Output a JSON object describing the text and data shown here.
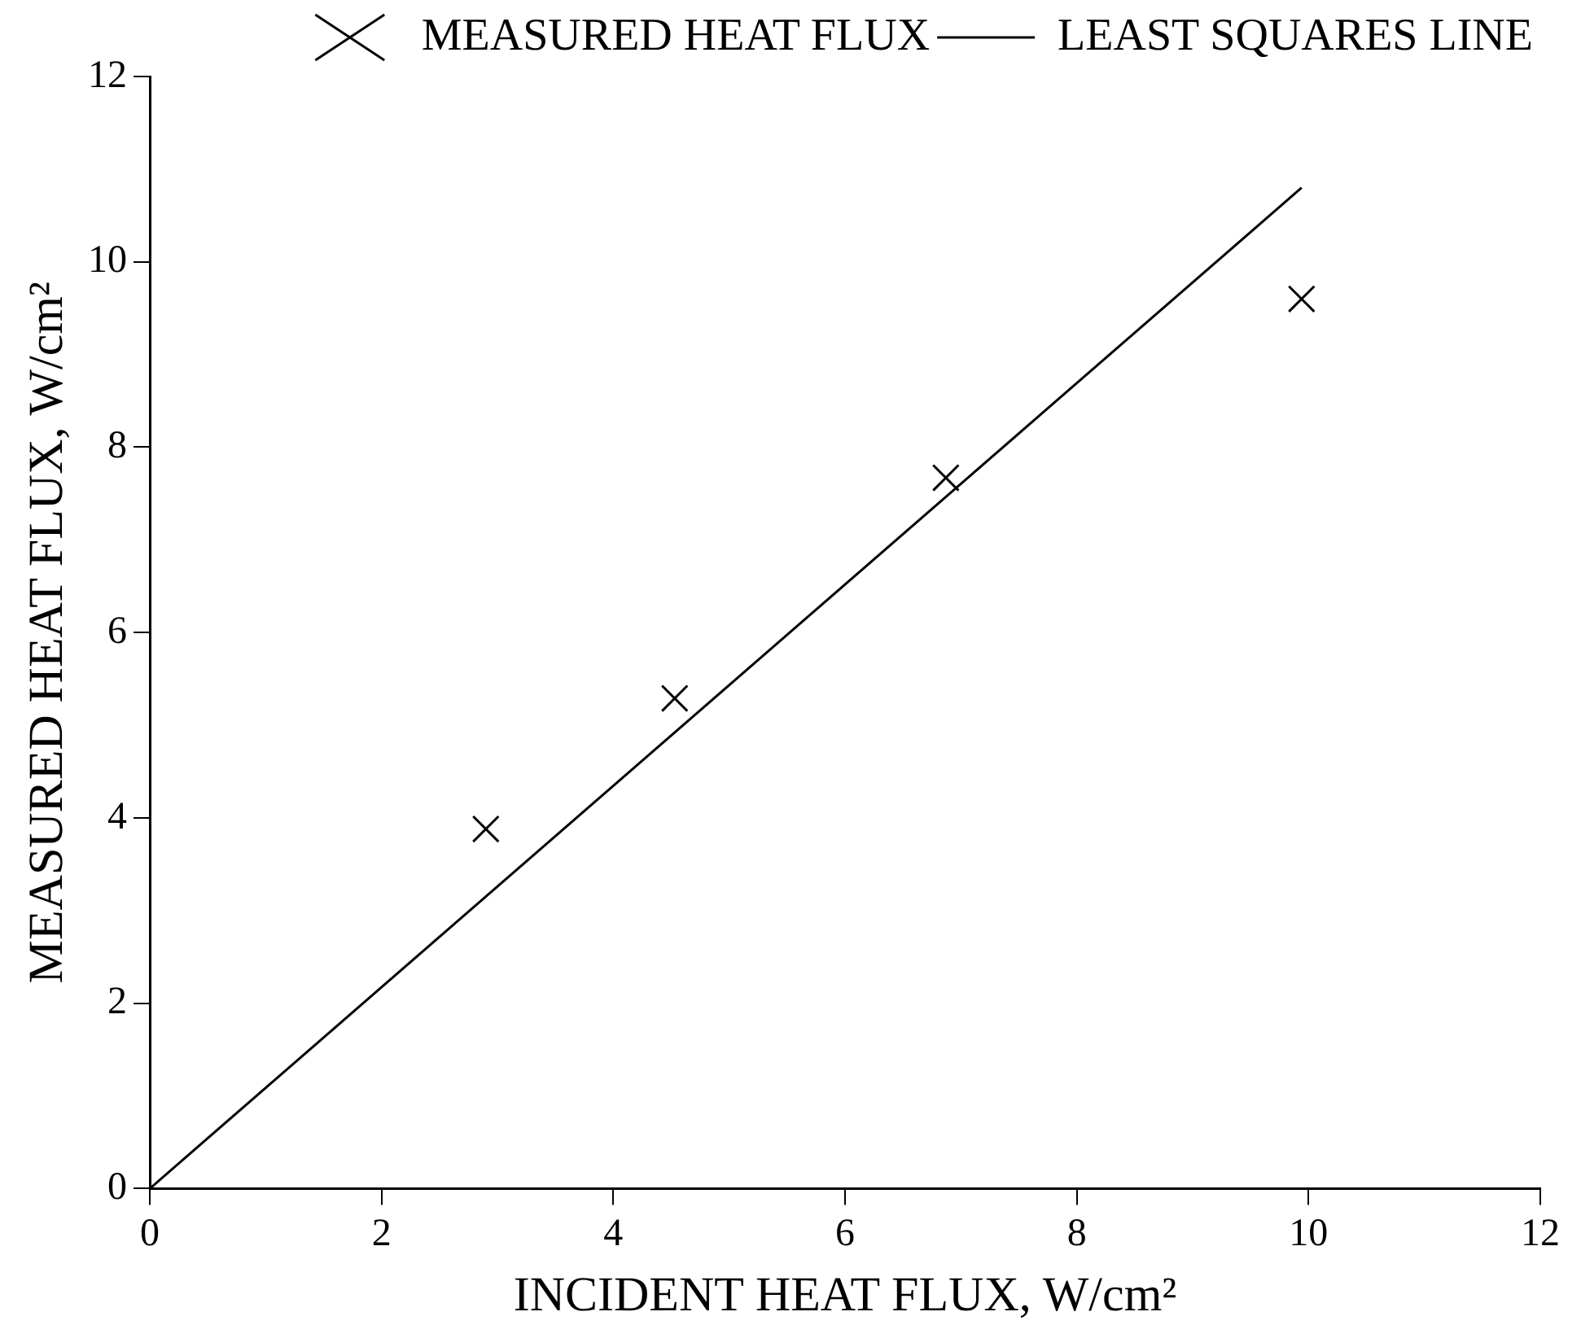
{
  "chart_data": {
    "type": "scatter",
    "xlabel": "INCIDENT HEAT FLUX, W/cm²",
    "ylabel": "MEASURED HEAT FLUX, W/cm²",
    "xlim": [
      0,
      12
    ],
    "ylim": [
      0,
      12
    ],
    "xticks": [
      0,
      2,
      4,
      6,
      8,
      10,
      12
    ],
    "yticks": [
      0,
      2,
      4,
      6,
      8,
      10,
      12
    ],
    "grid": false,
    "legend": "top right",
    "series": [
      {
        "name": "MEASURED HEAT FLUX",
        "type": "scatter",
        "color": "#000000",
        "marker": "cross",
        "x": [
          2.9,
          4.53,
          6.87,
          9.94
        ],
        "values": [
          3.88,
          5.29,
          7.67,
          9.6
        ]
      },
      {
        "name": "LEAST SQUARES LINE",
        "type": "line",
        "color": "#000000",
        "marker": "none",
        "line_style": "solid",
        "x": [
          0,
          9.94
        ],
        "values": [
          0,
          10.8
        ]
      }
    ]
  }
}
